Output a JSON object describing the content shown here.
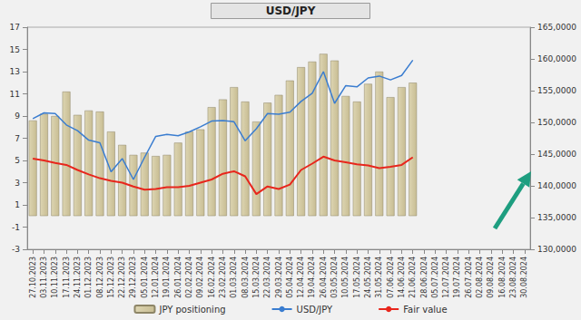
{
  "chart_data": {
    "type": "bar",
    "title": "USD/JPY",
    "categories": [
      "27.10.2023",
      "03.11.2023",
      "10.11.2023",
      "17.11.2023",
      "24.11.2023",
      "01.12.2023",
      "08.12.2023",
      "15.12.2023",
      "22.12.2023",
      "29.12.2023",
      "05.01.2024",
      "12.01.2024",
      "19.01.2024",
      "26.01.2024",
      "02.02.2024",
      "09.02.2024",
      "16.02.2024",
      "23.02.2024",
      "01.03.2024",
      "08.03.2024",
      "15.03.2024",
      "22.03.2024",
      "29.03.2024",
      "05.04.2024",
      "12.04.2024",
      "19.04.2024",
      "26.04.2024",
      "03.05.2024",
      "10.05.2024",
      "17.05.2024",
      "24.05.2024",
      "31.05.2024",
      "07.06.2024",
      "14.06.2024",
      "21.06.2024",
      "28.06.2024",
      "05.07.2024",
      "12.07.2024",
      "19.07.2024",
      "26.07.2024",
      "02.08.2024",
      "09.08.2024",
      "16.08.2024",
      "23.08.2024",
      "30.08.2024"
    ],
    "series": [
      {
        "name": "JPY positioning",
        "type": "bar",
        "color": "#c8bd93",
        "values": [
          8.6,
          9.2,
          9.0,
          11.2,
          9.1,
          9.5,
          9.4,
          7.6,
          6.4,
          5.5,
          5.7,
          5.4,
          5.5,
          6.6,
          7.6,
          7.8,
          9.8,
          10.5,
          11.6,
          10.3,
          8.5,
          10.2,
          10.9,
          12.2,
          13.4,
          13.9,
          14.6,
          14.0,
          10.8,
          10.3,
          11.9,
          13.0,
          10.7,
          11.6,
          12.0,
          null,
          null,
          null,
          null,
          null,
          null,
          null,
          null,
          null,
          null
        ]
      },
      {
        "name": "USD/JPY",
        "type": "line",
        "axis": "y2",
        "color": "#3a7dd0",
        "values": [
          150.6,
          151.5,
          151.4,
          149.6,
          148.7,
          147.2,
          146.8,
          142.2,
          144.3,
          141.0,
          144.5,
          147.8,
          148.1,
          147.9,
          148.5,
          149.3,
          150.2,
          150.3,
          150.1,
          147.1,
          149.0,
          151.4,
          151.3,
          151.6,
          153.3,
          154.6,
          158.0,
          153.0,
          155.8,
          155.6,
          157.0,
          157.3,
          156.7,
          157.4,
          159.8,
          null,
          null,
          null,
          null,
          null,
          null,
          null,
          null,
          null,
          null
        ]
      },
      {
        "name": "Fair value",
        "type": "line",
        "axis": "y2",
        "color": "#e8261c",
        "values": [
          144.3,
          144.0,
          143.6,
          143.3,
          142.5,
          141.8,
          141.2,
          140.8,
          140.5,
          139.9,
          139.4,
          139.5,
          139.8,
          139.8,
          140.0,
          140.5,
          141.0,
          141.9,
          142.3,
          141.5,
          138.7,
          139.9,
          139.5,
          140.2,
          142.5,
          143.5,
          144.6,
          144.0,
          143.7,
          143.4,
          143.2,
          142.8,
          143.0,
          143.3,
          144.5,
          null,
          null,
          null,
          null,
          null,
          null,
          null,
          null,
          null,
          null
        ]
      }
    ],
    "ylim": [
      -3,
      17
    ],
    "yticks": [
      -3,
      -1,
      1,
      3,
      5,
      7,
      9,
      11,
      13,
      15,
      17
    ],
    "y2lim": [
      130,
      165
    ],
    "y2ticks": [
      {
        "value": 130,
        "label": "130,0000"
      },
      {
        "value": 135,
        "label": "135,0000"
      },
      {
        "value": 140,
        "label": "140,0000"
      },
      {
        "value": 145,
        "label": "145,0000"
      },
      {
        "value": 150,
        "label": "150,0000"
      },
      {
        "value": 155,
        "label": "155,0000"
      },
      {
        "value": 160,
        "label": "160,0000"
      },
      {
        "value": 165,
        "label": "165,0000"
      }
    ],
    "grid": false,
    "legend": "bottom"
  }
}
